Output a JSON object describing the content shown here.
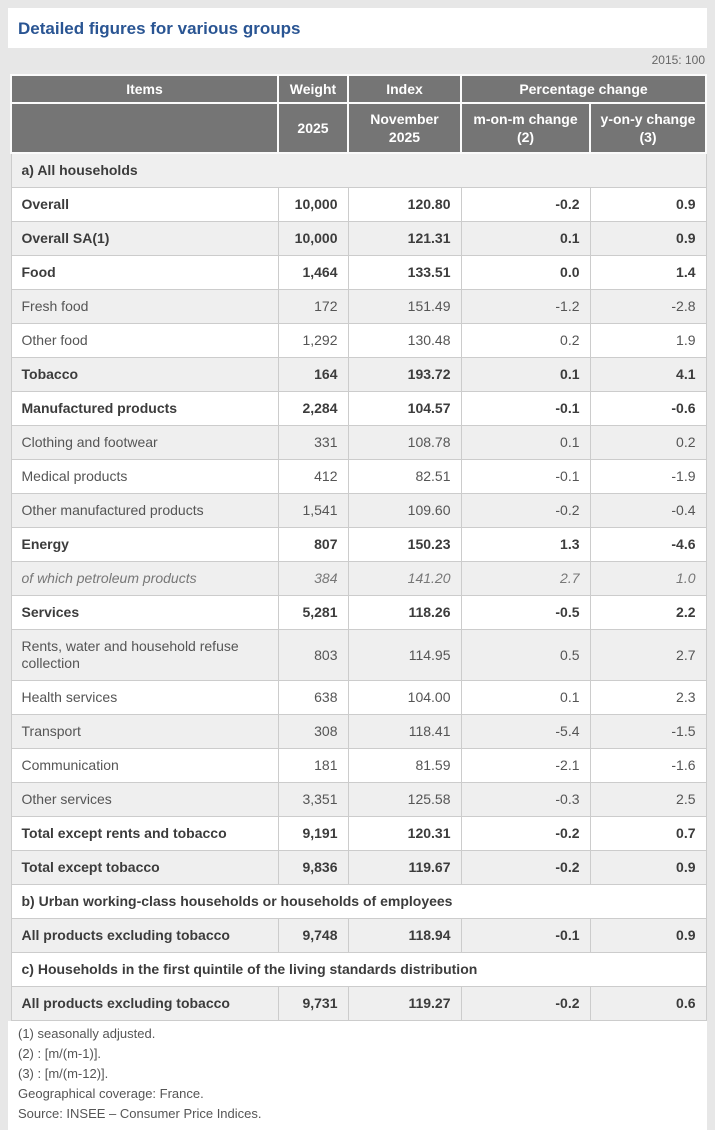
{
  "page": {
    "title": "Detailed figures for various groups",
    "base_note": "2015: 100"
  },
  "colors": {
    "title_blue": "#2a5593",
    "header_gray": "#757575",
    "stripe_gray": "#efefef",
    "page_bg": "#e7e7e7",
    "border_gray": "#cccccc"
  },
  "table": {
    "header_row1": {
      "items": "Items",
      "weight": "Weight",
      "index": "Index",
      "pct_change": "Percentage change"
    },
    "header_row2": {
      "weight": "2025",
      "index_line1": "November",
      "index_line2": "2025",
      "mom_line1": "m-on-m change",
      "mom_line2": "(2)",
      "yoy_line1": "y-on-y change",
      "yoy_line2": "(3)"
    },
    "rows": [
      {
        "type": "section",
        "label": "a) All households"
      },
      {
        "type": "data",
        "style": "bold",
        "label": "Overall",
        "weight": "10,000",
        "index": "120.80",
        "mom": "-0.2",
        "yoy": "0.9"
      },
      {
        "type": "data",
        "style": "bold",
        "label": "Overall SA(1)",
        "weight": "10,000",
        "index": "121.31",
        "mom": "0.1",
        "yoy": "0.9"
      },
      {
        "type": "data",
        "style": "bold",
        "label": "Food",
        "weight": "1,464",
        "index": "133.51",
        "mom": "0.0",
        "yoy": "1.4"
      },
      {
        "type": "data",
        "style": "normal",
        "label": "Fresh food",
        "weight": "172",
        "index": "151.49",
        "mom": "-1.2",
        "yoy": "-2.8"
      },
      {
        "type": "data",
        "style": "normal",
        "label": "Other food",
        "weight": "1,292",
        "index": "130.48",
        "mom": "0.2",
        "yoy": "1.9"
      },
      {
        "type": "data",
        "style": "bold",
        "label": "Tobacco",
        "weight": "164",
        "index": "193.72",
        "mom": "0.1",
        "yoy": "4.1"
      },
      {
        "type": "data",
        "style": "bold",
        "label": "Manufactured products",
        "weight": "2,284",
        "index": "104.57",
        "mom": "-0.1",
        "yoy": "-0.6"
      },
      {
        "type": "data",
        "style": "normal",
        "label": "Clothing and footwear",
        "weight": "331",
        "index": "108.78",
        "mom": "0.1",
        "yoy": "0.2"
      },
      {
        "type": "data",
        "style": "normal",
        "label": "Medical products",
        "weight": "412",
        "index": "82.51",
        "mom": "-0.1",
        "yoy": "-1.9"
      },
      {
        "type": "data",
        "style": "normal",
        "label": "Other manufactured products",
        "weight": "1,541",
        "index": "109.60",
        "mom": "-0.2",
        "yoy": "-0.4"
      },
      {
        "type": "data",
        "style": "bold",
        "label": "Energy",
        "weight": "807",
        "index": "150.23",
        "mom": "1.3",
        "yoy": "-4.6"
      },
      {
        "type": "data",
        "style": "italic",
        "label": "of which petroleum products",
        "weight": "384",
        "index": "141.20",
        "mom": "2.7",
        "yoy": "1.0"
      },
      {
        "type": "data",
        "style": "bold",
        "label": "Services",
        "weight": "5,281",
        "index": "118.26",
        "mom": "-0.5",
        "yoy": "2.2"
      },
      {
        "type": "data",
        "style": "normal",
        "label": "Rents, water and household refuse collection",
        "weight": "803",
        "index": "114.95",
        "mom": "0.5",
        "yoy": "2.7"
      },
      {
        "type": "data",
        "style": "normal",
        "label": "Health services",
        "weight": "638",
        "index": "104.00",
        "mom": "0.1",
        "yoy": "2.3"
      },
      {
        "type": "data",
        "style": "normal",
        "label": "Transport",
        "weight": "308",
        "index": "118.41",
        "mom": "-5.4",
        "yoy": "-1.5"
      },
      {
        "type": "data",
        "style": "normal",
        "label": "Communication",
        "weight": "181",
        "index": "81.59",
        "mom": "-2.1",
        "yoy": "-1.6"
      },
      {
        "type": "data",
        "style": "normal",
        "label": "Other services",
        "weight": "3,351",
        "index": "125.58",
        "mom": "-0.3",
        "yoy": "2.5"
      },
      {
        "type": "data",
        "style": "bold",
        "label": "Total except rents and tobacco",
        "weight": "9,191",
        "index": "120.31",
        "mom": "-0.2",
        "yoy": "0.7"
      },
      {
        "type": "data",
        "style": "bold",
        "label": "Total except tobacco",
        "weight": "9,836",
        "index": "119.67",
        "mom": "-0.2",
        "yoy": "0.9"
      },
      {
        "type": "section",
        "label": "b) Urban working-class households or households of employees"
      },
      {
        "type": "data",
        "style": "bold",
        "label": "All products excluding tobacco",
        "weight": "9,748",
        "index": "118.94",
        "mom": "-0.1",
        "yoy": "0.9"
      },
      {
        "type": "section",
        "label": "c) Households in the first quintile of the living standards distribution"
      },
      {
        "type": "data",
        "style": "bold",
        "label": "All products excluding tobacco",
        "weight": "9,731",
        "index": "119.27",
        "mom": "-0.2",
        "yoy": "0.6"
      }
    ]
  },
  "footnotes": [
    "(1) seasonally adjusted.",
    "(2) : [m/(m-1)].",
    "(3) : [m/(m-12)].",
    "Geographical coverage: France.",
    "Source: INSEE – Consumer Price Indices."
  ]
}
